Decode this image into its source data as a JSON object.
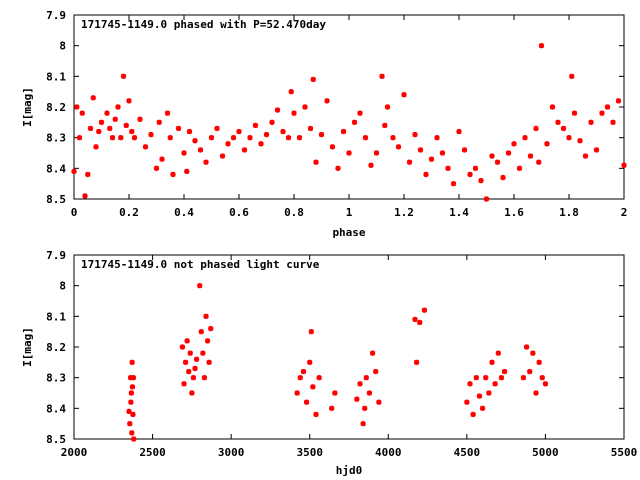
{
  "chart_data": [
    {
      "type": "scatter",
      "title": "171745-1149.0 phased with P=52.470day",
      "xlabel": "phase",
      "ylabel": "I[mag]",
      "xlim": [
        0,
        2
      ],
      "ylim": [
        8.5,
        7.9
      ],
      "y_inverted": true,
      "xticks": [
        0,
        0.2,
        0.4,
        0.6,
        0.8,
        1,
        1.2,
        1.4,
        1.6,
        1.8,
        2
      ],
      "yticks": [
        7.9,
        8,
        8.1,
        8.2,
        8.3,
        8.4,
        8.5
      ],
      "xtick_labels": [
        "0",
        "0.2",
        "0.4",
        "0.6",
        "0.8",
        "1",
        "1.2",
        "1.4",
        "1.6",
        "1.8",
        "2"
      ],
      "ytick_labels": [
        "7.9",
        "8",
        "8.1",
        "8.2",
        "8.3",
        "8.4",
        "8.5"
      ],
      "grid": false,
      "marker_color": "#ff0000",
      "x": [
        0.0,
        0.01,
        0.02,
        0.03,
        0.04,
        0.05,
        0.06,
        0.07,
        0.08,
        0.09,
        0.1,
        0.12,
        0.13,
        0.14,
        0.15,
        0.16,
        0.17,
        0.18,
        0.19,
        0.2,
        0.21,
        0.22,
        0.24,
        0.26,
        0.28,
        0.3,
        0.31,
        0.32,
        0.34,
        0.35,
        0.36,
        0.38,
        0.4,
        0.41,
        0.42,
        0.44,
        0.46,
        0.48,
        0.5,
        0.52,
        0.54,
        0.56,
        0.58,
        0.6,
        0.62,
        0.64,
        0.66,
        0.68,
        0.7,
        0.72,
        0.74,
        0.76,
        0.78,
        0.79,
        0.8,
        0.82,
        0.84,
        0.86,
        0.87,
        0.88,
        0.9,
        0.92,
        0.94,
        0.96,
        0.98,
        1.0,
        1.02,
        1.04,
        1.06,
        1.08,
        1.1,
        1.12,
        1.13,
        1.14,
        1.16,
        1.18,
        1.2,
        1.22,
        1.24,
        1.26,
        1.28,
        1.3,
        1.32,
        1.34,
        1.36,
        1.38,
        1.4,
        1.42,
        1.44,
        1.46,
        1.48,
        1.5,
        1.52,
        1.54,
        1.56,
        1.58,
        1.6,
        1.62,
        1.64,
        1.66,
        1.68,
        1.69,
        1.7,
        1.72,
        1.74,
        1.76,
        1.78,
        1.8,
        1.81,
        1.82,
        1.84,
        1.86,
        1.88,
        1.9,
        1.92,
        1.94,
        1.96,
        1.98,
        2.0
      ],
      "y": [
        8.41,
        8.2,
        8.3,
        8.22,
        8.49,
        8.42,
        8.27,
        8.17,
        8.33,
        8.28,
        8.25,
        8.22,
        8.27,
        8.3,
        8.24,
        8.2,
        8.3,
        8.1,
        8.26,
        8.18,
        8.28,
        8.3,
        8.24,
        8.33,
        8.29,
        8.4,
        8.25,
        8.37,
        8.22,
        8.3,
        8.42,
        8.27,
        8.35,
        8.41,
        8.28,
        8.31,
        8.34,
        8.38,
        8.3,
        8.27,
        8.36,
        8.32,
        8.3,
        8.28,
        8.34,
        8.3,
        8.26,
        8.32,
        8.29,
        8.25,
        8.21,
        8.28,
        8.3,
        8.15,
        8.22,
        8.3,
        8.2,
        8.27,
        8.11,
        8.38,
        8.29,
        8.18,
        8.33,
        8.4,
        8.28,
        8.35,
        8.25,
        8.22,
        8.3,
        8.39,
        8.35,
        8.1,
        8.26,
        8.2,
        8.3,
        8.33,
        8.16,
        8.38,
        8.29,
        8.34,
        8.42,
        8.37,
        8.3,
        8.35,
        8.4,
        8.45,
        8.28,
        8.34,
        8.42,
        8.4,
        8.44,
        8.5,
        8.36,
        8.38,
        8.43,
        8.35,
        8.32,
        8.4,
        8.3,
        8.36,
        8.27,
        8.38,
        8.0,
        8.32,
        8.2,
        8.25,
        8.27,
        8.3,
        8.1,
        8.22,
        8.31,
        8.36,
        8.25,
        8.34,
        8.22,
        8.2,
        8.25,
        8.18,
        8.39
      ]
    },
    {
      "type": "scatter",
      "title": "171745-1149.0 not phased light curve",
      "xlabel": "hjd0",
      "ylabel": "I[mag]",
      "xlim": [
        2000,
        5500
      ],
      "ylim": [
        8.5,
        7.9
      ],
      "y_inverted": true,
      "xticks": [
        2000,
        2500,
        3000,
        3500,
        4000,
        4500,
        5000,
        5500
      ],
      "yticks": [
        7.9,
        8,
        8.1,
        8.2,
        8.3,
        8.4,
        8.5
      ],
      "xtick_labels": [
        "2000",
        "2500",
        "3000",
        "3500",
        "4000",
        "4500",
        "5000",
        "5500"
      ],
      "ytick_labels": [
        "7.9",
        "8",
        "8.1",
        "8.2",
        "8.3",
        "8.4",
        "8.5"
      ],
      "grid": false,
      "marker_color": "#ff0000",
      "x": [
        2350,
        2355,
        2360,
        2362,
        2365,
        2368,
        2370,
        2372,
        2375,
        2378,
        2380,
        2690,
        2700,
        2710,
        2720,
        2730,
        2740,
        2750,
        2760,
        2770,
        2780,
        2800,
        2810,
        2820,
        2830,
        2840,
        2850,
        2860,
        2870,
        3420,
        3440,
        3460,
        3480,
        3500,
        3510,
        3520,
        3540,
        3560,
        3640,
        3660,
        3800,
        3820,
        3840,
        3850,
        3860,
        3880,
        3900,
        3920,
        3940,
        4170,
        4180,
        4200,
        4230,
        4500,
        4520,
        4540,
        4560,
        4580,
        4600,
        4620,
        4640,
        4660,
        4680,
        4700,
        4720,
        4740,
        4860,
        4880,
        4900,
        4920,
        4940,
        4960,
        4980,
        5000
      ],
      "y": [
        8.41,
        8.45,
        8.3,
        8.38,
        8.35,
        8.48,
        8.25,
        8.33,
        8.42,
        8.3,
        8.5,
        8.2,
        8.32,
        8.25,
        8.18,
        8.28,
        8.22,
        8.35,
        8.3,
        8.27,
        8.24,
        8.0,
        8.15,
        8.22,
        8.3,
        8.1,
        8.18,
        8.25,
        8.14,
        8.35,
        8.3,
        8.28,
        8.38,
        8.25,
        8.15,
        8.33,
        8.42,
        8.3,
        8.4,
        8.35,
        8.37,
        8.32,
        8.45,
        8.4,
        8.3,
        8.35,
        8.22,
        8.28,
        8.38,
        8.11,
        8.25,
        8.12,
        8.08,
        8.38,
        8.32,
        8.42,
        8.3,
        8.36,
        8.4,
        8.3,
        8.35,
        8.25,
        8.32,
        8.22,
        8.3,
        8.28,
        8.3,
        8.2,
        8.28,
        8.22,
        8.35,
        8.25,
        8.3,
        8.32
      ]
    }
  ]
}
